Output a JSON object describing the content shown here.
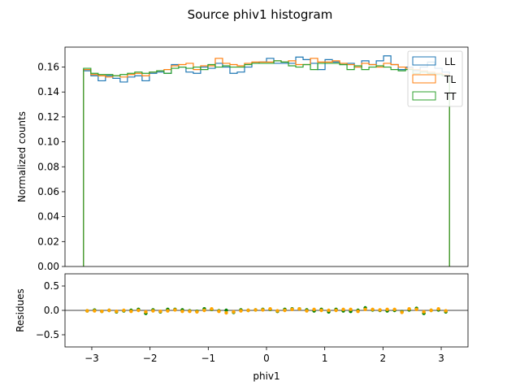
{
  "figure": {
    "title": "Source phiv1 histogram"
  },
  "chart_data": [
    {
      "type": "histogram",
      "panel": "main",
      "ylabel": "Normalized counts",
      "xlim": [
        -3.46,
        3.46
      ],
      "ylim": [
        0.0,
        0.176
      ],
      "yticks": [
        0.0,
        0.02,
        0.04,
        0.06,
        0.08,
        0.1,
        0.12,
        0.14,
        0.16
      ],
      "ytick_labels": [
        "0.00",
        "0.02",
        "0.04",
        "0.06",
        "0.08",
        "0.10",
        "0.12",
        "0.14",
        "0.16"
      ],
      "x_edges": [
        -3.1416,
        -3.0159,
        -2.8903,
        -2.7646,
        -2.6389,
        -2.5133,
        -2.3876,
        -2.2619,
        -2.1363,
        -2.0106,
        -1.885,
        -1.7593,
        -1.6336,
        -1.508,
        -1.3823,
        -1.2566,
        -1.131,
        -1.0053,
        -0.8796,
        -0.754,
        -0.6283,
        -0.5027,
        -0.377,
        -0.2513,
        -0.1257,
        0.0,
        0.1257,
        0.2513,
        0.377,
        0.5027,
        0.6283,
        0.754,
        0.8796,
        1.0053,
        1.131,
        1.2566,
        1.3823,
        1.508,
        1.6336,
        1.7593,
        1.885,
        2.0106,
        2.1363,
        2.2619,
        2.3876,
        2.5133,
        2.6389,
        2.7646,
        2.8903,
        3.0159,
        3.1416
      ],
      "grid": false,
      "legend_position": "top-right",
      "series": [
        {
          "name": "LL",
          "color": "#1f77b4",
          "values": [
            0.157,
            0.153,
            0.149,
            0.153,
            0.151,
            0.148,
            0.152,
            0.153,
            0.149,
            0.155,
            0.156,
            0.155,
            0.162,
            0.16,
            0.156,
            0.155,
            0.16,
            0.159,
            0.163,
            0.16,
            0.155,
            0.156,
            0.16,
            0.163,
            0.164,
            0.167,
            0.163,
            0.163,
            0.163,
            0.168,
            0.166,
            0.163,
            0.158,
            0.166,
            0.164,
            0.162,
            0.163,
            0.16,
            0.165,
            0.162,
            0.165,
            0.169,
            0.162,
            0.158,
            0.16,
            0.157,
            0.16,
            0.164,
            0.159,
            0.156
          ]
        },
        {
          "name": "TL",
          "color": "#ff7f0e",
          "values": [
            0.158,
            0.154,
            0.153,
            0.152,
            0.153,
            0.152,
            0.154,
            0.155,
            0.153,
            0.156,
            0.157,
            0.158,
            0.161,
            0.162,
            0.163,
            0.158,
            0.161,
            0.161,
            0.167,
            0.163,
            0.162,
            0.161,
            0.163,
            0.164,
            0.164,
            0.164,
            0.165,
            0.164,
            0.165,
            0.162,
            0.162,
            0.167,
            0.164,
            0.164,
            0.165,
            0.163,
            0.162,
            0.16,
            0.163,
            0.162,
            0.16,
            0.163,
            0.162,
            0.16,
            0.159,
            0.158,
            0.157,
            0.156,
            0.155,
            0.154
          ]
        },
        {
          "name": "TT",
          "color": "#2ca02c",
          "values": [
            0.159,
            0.155,
            0.154,
            0.154,
            0.153,
            0.154,
            0.155,
            0.156,
            0.155,
            0.156,
            0.157,
            0.155,
            0.159,
            0.16,
            0.159,
            0.16,
            0.158,
            0.162,
            0.16,
            0.161,
            0.16,
            0.16,
            0.162,
            0.163,
            0.163,
            0.163,
            0.165,
            0.164,
            0.161,
            0.16,
            0.162,
            0.158,
            0.163,
            0.163,
            0.163,
            0.162,
            0.158,
            0.161,
            0.158,
            0.16,
            0.161,
            0.16,
            0.158,
            0.157,
            0.158,
            0.155,
            0.156,
            0.155,
            0.154,
            0.153
          ]
        }
      ]
    },
    {
      "type": "scatter",
      "panel": "residues",
      "xlabel": "phiv1",
      "ylabel": "Residues",
      "xlim": [
        -3.46,
        3.46
      ],
      "ylim": [
        -0.75,
        0.75
      ],
      "xticks": [
        -3,
        -2,
        -1,
        0,
        1,
        2,
        3
      ],
      "xtick_labels": [
        "−3",
        "−2",
        "−1",
        "0",
        "1",
        "2",
        "3"
      ],
      "yticks": [
        -0.5,
        0.0,
        0.5
      ],
      "ytick_labels": [
        "−0.5",
        "0.0",
        "0.5"
      ],
      "reference_line": 0.0,
      "x": [
        -3.079,
        -2.953,
        -2.827,
        -2.702,
        -2.576,
        -2.45,
        -2.325,
        -2.199,
        -2.073,
        -1.948,
        -1.822,
        -1.696,
        -1.571,
        -1.445,
        -1.319,
        -1.194,
        -1.068,
        -0.942,
        -0.817,
        -0.691,
        -0.565,
        -0.44,
        -0.314,
        -0.188,
        -0.063,
        0.063,
        0.188,
        0.314,
        0.44,
        0.565,
        0.691,
        0.817,
        0.942,
        1.068,
        1.194,
        1.319,
        1.445,
        1.571,
        1.696,
        1.822,
        1.948,
        2.073,
        2.199,
        2.325,
        2.45,
        2.576,
        2.702,
        2.827,
        2.953,
        3.079
      ],
      "series": [
        {
          "name": "",
          "color": "#008000",
          "values": [
            -0.01,
            0.005,
            -0.02,
            0.0,
            -0.03,
            -0.01,
            0.0,
            0.02,
            -0.06,
            0.01,
            -0.03,
            0.02,
            0.02,
            0.01,
            -0.01,
            -0.02,
            0.03,
            0.02,
            -0.01,
            0.0,
            -0.04,
            0.01,
            0.0,
            0.01,
            0.02,
            0.02,
            -0.02,
            0.02,
            0.03,
            0.03,
            0.01,
            -0.01,
            0.02,
            -0.03,
            0.02,
            -0.01,
            -0.02,
            0.0,
            0.05,
            0.01,
            0.0,
            -0.01,
            0.0,
            -0.03,
            0.01,
            0.04,
            -0.06,
            0.0,
            0.01,
            -0.03
          ]
        },
        {
          "name": "",
          "color": "#ffa500",
          "values": [
            -0.01,
            -0.01,
            -0.02,
            0.0,
            -0.02,
            0.0,
            -0.02,
            0.0,
            -0.03,
            -0.01,
            -0.02,
            -0.01,
            0.01,
            -0.02,
            -0.02,
            -0.03,
            0.0,
            0.03,
            -0.02,
            -0.05,
            -0.03,
            -0.01,
            0.0,
            0.01,
            0.01,
            0.03,
            -0.01,
            0.0,
            0.02,
            0.03,
            -0.01,
            0.02,
            0.0,
            0.0,
            0.0,
            0.02,
            0.02,
            -0.02,
            0.02,
            0.02,
            0.01,
            0.02,
            0.02,
            -0.04,
            0.03,
            0.02,
            -0.03,
            0.0,
            0.03,
            -0.01
          ]
        }
      ]
    }
  ]
}
